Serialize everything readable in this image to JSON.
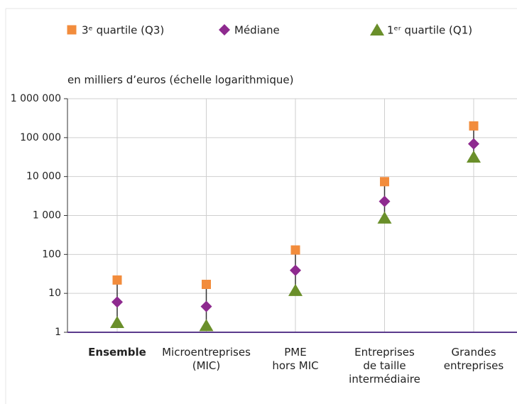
{
  "chart_data": {
    "type": "log-quartiles",
    "y_label": "en milliers d’euros (échelle logarithmique)",
    "categories": [
      "Ensemble",
      "Microentreprises\n(MIC)",
      "PME\nhors MIC",
      "Entreprises\nde taille\nintermédiaire",
      "Grandes\nentreprises"
    ],
    "log_scale": true,
    "grid": true,
    "ylim": [
      1,
      1000000
    ],
    "yticks": [
      1,
      10,
      100,
      {
        "value": 1000,
        "label": "1 000"
      },
      {
        "value": 10000,
        "label": "10 000"
      },
      {
        "value": 100000,
        "label": "100 000"
      },
      {
        "value": 1000000,
        "label": "1 000 000"
      }
    ],
    "series": [
      {
        "name": "3ᵉ quartile (Q3)",
        "color": "#f28c3c",
        "marker": "square",
        "values": [
          22,
          17,
          130,
          7400,
          200000
        ]
      },
      {
        "name": "Médiane",
        "color": "#8e2a8f",
        "marker": "diamond",
        "values": [
          6,
          4.6,
          39,
          2300,
          69000
        ]
      },
      {
        "name": "1ᵉʳ quartile (Q1)",
        "color": "#6a8f2a",
        "marker": "triangle",
        "values": [
          1.8,
          1.5,
          12,
          870,
          32000
        ]
      }
    ]
  }
}
